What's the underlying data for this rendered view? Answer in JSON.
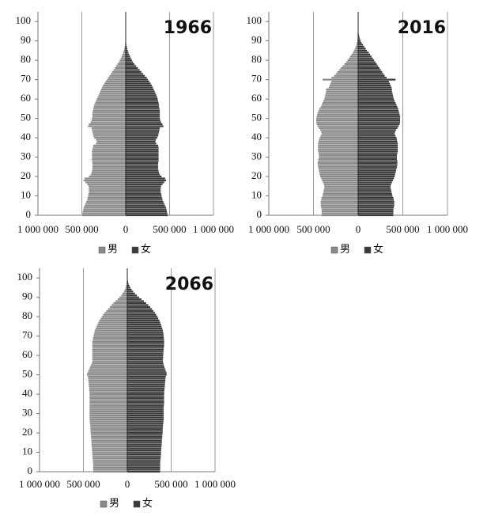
{
  "chart_data": [
    {
      "type": "bar",
      "orientation": "horizontal",
      "title": "1966",
      "categories": [
        0,
        1,
        2,
        3,
        4,
        5,
        6,
        7,
        8,
        9,
        10,
        11,
        12,
        13,
        14,
        15,
        16,
        17,
        18,
        19,
        20,
        21,
        22,
        23,
        24,
        25,
        26,
        27,
        28,
        29,
        30,
        31,
        32,
        33,
        34,
        35,
        36,
        37,
        38,
        39,
        40,
        41,
        42,
        43,
        44,
        45,
        46,
        47,
        48,
        49,
        50,
        51,
        52,
        53,
        54,
        55,
        56,
        57,
        58,
        59,
        60,
        61,
        62,
        63,
        64,
        65,
        66,
        67,
        68,
        69,
        70,
        71,
        72,
        73,
        74,
        75,
        76,
        77,
        78,
        79,
        80,
        81,
        82,
        83,
        84,
        85,
        86,
        87,
        88,
        89,
        90,
        91,
        92,
        93,
        94,
        95,
        96,
        97,
        98,
        99,
        100
      ],
      "series": [
        {
          "name": "男",
          "color": "#8a8a8a",
          "values": [
            -500000,
            -495000,
            -490000,
            -485000,
            -480000,
            -470000,
            -460000,
            -450000,
            -440000,
            -435000,
            -430000,
            -425000,
            -420000,
            -420000,
            -420000,
            -425000,
            -440000,
            -460000,
            -480000,
            -470000,
            -420000,
            -400000,
            -390000,
            -385000,
            -380000,
            -380000,
            -380000,
            -380000,
            -385000,
            -385000,
            -385000,
            -385000,
            -385000,
            -385000,
            -380000,
            -375000,
            -370000,
            -340000,
            -330000,
            -340000,
            -360000,
            -370000,
            -375000,
            -380000,
            -385000,
            -390000,
            -430000,
            -420000,
            -400000,
            -390000,
            -385000,
            -380000,
            -380000,
            -380000,
            -375000,
            -370000,
            -365000,
            -360000,
            -350000,
            -340000,
            -330000,
            -320000,
            -310000,
            -300000,
            -290000,
            -280000,
            -270000,
            -260000,
            -245000,
            -230000,
            -215000,
            -200000,
            -185000,
            -170000,
            -155000,
            -140000,
            -125000,
            -110000,
            -95000,
            -80000,
            -68000,
            -57000,
            -47000,
            -38000,
            -30000,
            -23000,
            -17000,
            -12000,
            -8000,
            -5000,
            -3000,
            -2000,
            -1000,
            -1000,
            -1000,
            0,
            0,
            0,
            0,
            0,
            0
          ]
        },
        {
          "name": "女",
          "color": "#3a3a3a",
          "values": [
            480000,
            475000,
            470000,
            465000,
            460000,
            450000,
            440000,
            430000,
            420000,
            415000,
            410000,
            405000,
            400000,
            400000,
            400000,
            405000,
            420000,
            440000,
            460000,
            450000,
            410000,
            390000,
            380000,
            375000,
            370000,
            370000,
            370000,
            370000,
            375000,
            375000,
            375000,
            375000,
            375000,
            375000,
            375000,
            375000,
            370000,
            350000,
            340000,
            345000,
            360000,
            370000,
            375000,
            380000,
            385000,
            390000,
            430000,
            420000,
            405000,
            395000,
            390000,
            390000,
            390000,
            390000,
            390000,
            385000,
            380000,
            380000,
            375000,
            370000,
            365000,
            360000,
            350000,
            340000,
            330000,
            320000,
            310000,
            300000,
            285000,
            270000,
            255000,
            240000,
            220000,
            200000,
            180000,
            160000,
            140000,
            120000,
            100000,
            85000,
            72000,
            60000,
            50000,
            40000,
            32000,
            25000,
            18000,
            13000,
            9000,
            6000,
            4000,
            3000,
            2000,
            1000,
            1000,
            1000,
            0,
            0,
            0,
            0,
            0
          ]
        }
      ],
      "xlim": [
        -1000000,
        1000000
      ],
      "xticks": [
        {
          "value": -1000000,
          "label": "1 000 000"
        },
        {
          "value": -500000,
          "label": "500 000"
        },
        0,
        {
          "value": 500000,
          "label": "500 000"
        },
        {
          "value": 1000000,
          "label": "1 000 000"
        }
      ],
      "ylim": [
        0,
        105
      ],
      "yticks": [
        0,
        10,
        20,
        30,
        40,
        50,
        60,
        70,
        80,
        90,
        100
      ],
      "grid": true
    },
    {
      "type": "bar",
      "orientation": "horizontal",
      "title": "2016",
      "categories": [
        0,
        1,
        2,
        3,
        4,
        5,
        6,
        7,
        8,
        9,
        10,
        11,
        12,
        13,
        14,
        15,
        16,
        17,
        18,
        19,
        20,
        21,
        22,
        23,
        24,
        25,
        26,
        27,
        28,
        29,
        30,
        31,
        32,
        33,
        34,
        35,
        36,
        37,
        38,
        39,
        40,
        41,
        42,
        43,
        44,
        45,
        46,
        47,
        48,
        49,
        50,
        51,
        52,
        53,
        54,
        55,
        56,
        57,
        58,
        59,
        60,
        61,
        62,
        63,
        64,
        65,
        66,
        67,
        68,
        69,
        70,
        71,
        72,
        73,
        74,
        75,
        76,
        77,
        78,
        79,
        80,
        81,
        82,
        83,
        84,
        85,
        86,
        87,
        88,
        89,
        90,
        91,
        92,
        93,
        94,
        95,
        96,
        97,
        98,
        99,
        100
      ],
      "series": [
        {
          "name": "男",
          "color": "#8a8a8a",
          "values": [
            -410000,
            -410000,
            -410000,
            -410000,
            -415000,
            -420000,
            -420000,
            -420000,
            -415000,
            -410000,
            -400000,
            -395000,
            -390000,
            -385000,
            -380000,
            -380000,
            -385000,
            -395000,
            -405000,
            -415000,
            -425000,
            -430000,
            -435000,
            -440000,
            -445000,
            -450000,
            -455000,
            -455000,
            -450000,
            -445000,
            -440000,
            -440000,
            -445000,
            -450000,
            -450000,
            -450000,
            -450000,
            -450000,
            -445000,
            -440000,
            -430000,
            -420000,
            -410000,
            -415000,
            -425000,
            -440000,
            -455000,
            -465000,
            -470000,
            -470000,
            -470000,
            -465000,
            -460000,
            -455000,
            -445000,
            -435000,
            -420000,
            -410000,
            -400000,
            -390000,
            -380000,
            -375000,
            -370000,
            -365000,
            -360000,
            -360000,
            -330000,
            -320000,
            -310000,
            -300000,
            -400000,
            -300000,
            -270000,
            -250000,
            -235000,
            -215000,
            -195000,
            -175000,
            -155000,
            -135000,
            -120000,
            -105000,
            -90000,
            -75000,
            -60000,
            -48000,
            -38000,
            -28000,
            -20000,
            -14000,
            -10000,
            -7000,
            -5000,
            -3000,
            -2000,
            -1000,
            -1000,
            0,
            0,
            0,
            0
          ]
        },
        {
          "name": "女",
          "color": "#3a3a3a",
          "values": [
            395000,
            395000,
            395000,
            395000,
            400000,
            405000,
            405000,
            405000,
            400000,
            395000,
            385000,
            380000,
            375000,
            370000,
            365000,
            365000,
            370000,
            380000,
            390000,
            400000,
            410000,
            415000,
            420000,
            425000,
            430000,
            435000,
            440000,
            440000,
            440000,
            435000,
            435000,
            435000,
            440000,
            445000,
            445000,
            445000,
            445000,
            445000,
            440000,
            435000,
            430000,
            420000,
            410000,
            415000,
            425000,
            440000,
            455000,
            465000,
            470000,
            470000,
            470000,
            470000,
            465000,
            460000,
            455000,
            450000,
            440000,
            430000,
            420000,
            410000,
            400000,
            395000,
            390000,
            385000,
            380000,
            380000,
            375000,
            365000,
            355000,
            345000,
            420000,
            320000,
            300000,
            285000,
            270000,
            255000,
            240000,
            225000,
            210000,
            195000,
            180000,
            165000,
            150000,
            135000,
            120000,
            100000,
            85000,
            70000,
            55000,
            40000,
            30000,
            22000,
            15000,
            10000,
            6000,
            4000,
            2000,
            1000,
            1000,
            0,
            0
          ]
        }
      ],
      "xlim": [
        -1000000,
        1000000
      ],
      "xticks": [
        {
          "value": -1000000,
          "label": "1 000 000"
        },
        {
          "value": -500000,
          "label": "500 000"
        },
        0,
        {
          "value": 500000,
          "label": "500 000"
        },
        {
          "value": 1000000,
          "label": "1 000 000"
        }
      ],
      "ylim": [
        0,
        105
      ],
      "yticks": [
        0,
        10,
        20,
        30,
        40,
        50,
        60,
        70,
        80,
        90,
        100
      ],
      "grid": true
    },
    {
      "type": "bar",
      "orientation": "horizontal",
      "title": "2066",
      "categories": [
        0,
        1,
        2,
        3,
        4,
        5,
        6,
        7,
        8,
        9,
        10,
        11,
        12,
        13,
        14,
        15,
        16,
        17,
        18,
        19,
        20,
        21,
        22,
        23,
        24,
        25,
        26,
        27,
        28,
        29,
        30,
        31,
        32,
        33,
        34,
        35,
        36,
        37,
        38,
        39,
        40,
        41,
        42,
        43,
        44,
        45,
        46,
        47,
        48,
        49,
        50,
        51,
        52,
        53,
        54,
        55,
        56,
        57,
        58,
        59,
        60,
        61,
        62,
        63,
        64,
        65,
        66,
        67,
        68,
        69,
        70,
        71,
        72,
        73,
        74,
        75,
        76,
        77,
        78,
        79,
        80,
        81,
        82,
        83,
        84,
        85,
        86,
        87,
        88,
        89,
        90,
        91,
        92,
        93,
        94,
        95,
        96,
        97,
        98,
        99,
        100
      ],
      "series": [
        {
          "name": "男",
          "color": "#8a8a8a",
          "values": [
            -390000,
            -390000,
            -390000,
            -390000,
            -390000,
            -392000,
            -394000,
            -396000,
            -398000,
            -400000,
            -400000,
            -402000,
            -404000,
            -406000,
            -408000,
            -410000,
            -410000,
            -412000,
            -414000,
            -416000,
            -418000,
            -420000,
            -420000,
            -422000,
            -424000,
            -426000,
            -428000,
            -430000,
            -430000,
            -430000,
            -430000,
            -430000,
            -430000,
            -430000,
            -430000,
            -430000,
            -430000,
            -430000,
            -430000,
            -430000,
            -430000,
            -432000,
            -434000,
            -436000,
            -438000,
            -440000,
            -442000,
            -444000,
            -446000,
            -450000,
            -460000,
            -455000,
            -445000,
            -435000,
            -425000,
            -415000,
            -405000,
            -400000,
            -400000,
            -400000,
            -400000,
            -400000,
            -400000,
            -400000,
            -400000,
            -400000,
            -400000,
            -400000,
            -395000,
            -390000,
            -385000,
            -380000,
            -375000,
            -370000,
            -360000,
            -350000,
            -340000,
            -330000,
            -320000,
            -305000,
            -290000,
            -275000,
            -260000,
            -240000,
            -220000,
            -200000,
            -180000,
            -160000,
            -135000,
            -110000,
            -90000,
            -70000,
            -55000,
            -40000,
            -30000,
            -20000,
            -14000,
            -9000,
            -5000,
            -3000,
            -2000
          ]
        },
        {
          "name": "女",
          "color": "#3a3a3a",
          "values": [
            375000,
            375000,
            375000,
            375000,
            375000,
            377000,
            379000,
            381000,
            383000,
            385000,
            385000,
            387000,
            389000,
            391000,
            393000,
            395000,
            395000,
            397000,
            399000,
            401000,
            403000,
            405000,
            405000,
            407000,
            409000,
            411000,
            413000,
            415000,
            415000,
            415000,
            415000,
            415000,
            415000,
            415000,
            418000,
            420000,
            420000,
            420000,
            420000,
            420000,
            420000,
            422000,
            424000,
            426000,
            428000,
            430000,
            432000,
            434000,
            436000,
            440000,
            450000,
            448000,
            440000,
            432000,
            425000,
            418000,
            412000,
            408000,
            408000,
            410000,
            410000,
            412000,
            414000,
            416000,
            418000,
            420000,
            420000,
            420000,
            420000,
            418000,
            416000,
            414000,
            410000,
            406000,
            400000,
            392000,
            384000,
            376000,
            366000,
            355000,
            344000,
            330000,
            316000,
            300000,
            282000,
            262000,
            240000,
            216000,
            190000,
            162000,
            135000,
            110000,
            88000,
            68000,
            50000,
            36000,
            25000,
            16000,
            10000,
            6000,
            3000
          ]
        }
      ],
      "xlim": [
        -1000000,
        1000000
      ],
      "xticks": [
        {
          "value": -1000000,
          "label": "1 000 000"
        },
        {
          "value": -500000,
          "label": "500 000"
        },
        0,
        {
          "value": 500000,
          "label": "500 000"
        },
        {
          "value": 1000000,
          "label": "1 000 000"
        }
      ],
      "ylim": [
        0,
        105
      ],
      "yticks": [
        0,
        10,
        20,
        30,
        40,
        50,
        60,
        70,
        80,
        90,
        100
      ],
      "grid": true
    }
  ]
}
